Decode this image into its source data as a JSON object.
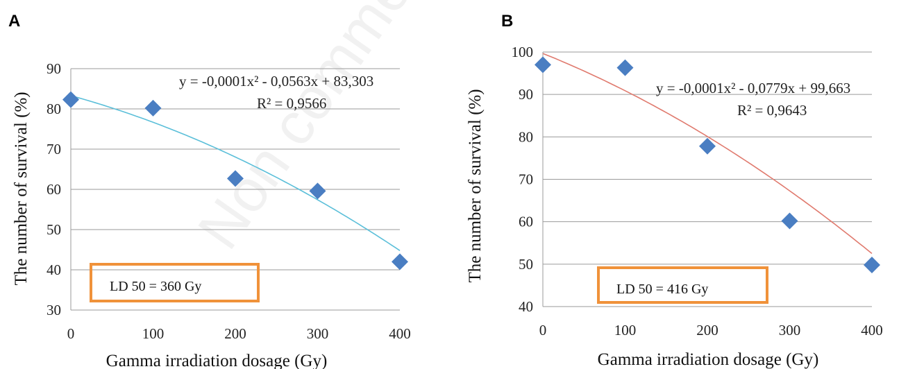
{
  "watermark": "Non commercial",
  "chart_data": [
    {
      "type": "scatter",
      "panel": "A",
      "title": "",
      "xlabel": "Gamma irradiation dosage (Gy)",
      "ylabel": "The number of survival (%)",
      "xlim": [
        0,
        400
      ],
      "ylim": [
        30,
        90
      ],
      "xticks": [
        0,
        100,
        200,
        300,
        400
      ],
      "yticks": [
        30,
        40,
        50,
        60,
        70,
        80,
        90
      ],
      "grid": true,
      "points": [
        {
          "x": 0,
          "y": 82.3
        },
        {
          "x": 100,
          "y": 80.2
        },
        {
          "x": 200,
          "y": 62.7
        },
        {
          "x": 300,
          "y": 59.6
        },
        {
          "x": 400,
          "y": 42.0
        }
      ],
      "trendline": {
        "type": "polynomial",
        "a": -0.0001,
        "b": -0.0563,
        "c": 83.303
      },
      "equation": "y = -0,0001x² - 0,0563x + 83,303",
      "r2": "R² = 0,9566",
      "annotation": "LD 50 = 360 Gy",
      "marker_color": "#4A7EC2",
      "trend_color": "#5BBFD9",
      "box_color": "#F0923A"
    },
    {
      "type": "scatter",
      "panel": "B",
      "title": "",
      "xlabel": "Gamma irradiation dosage  (Gy)",
      "ylabel": "The number of survival (%)",
      "xlim": [
        0,
        400
      ],
      "ylim": [
        40,
        100
      ],
      "xticks": [
        0,
        100,
        200,
        300,
        400
      ],
      "yticks": [
        40,
        50,
        60,
        70,
        80,
        90,
        100
      ],
      "grid": true,
      "points": [
        {
          "x": 0,
          "y": 97.0
        },
        {
          "x": 100,
          "y": 96.3
        },
        {
          "x": 200,
          "y": 77.8
        },
        {
          "x": 300,
          "y": 60.2
        },
        {
          "x": 400,
          "y": 49.8
        }
      ],
      "trendline": {
        "type": "polynomial",
        "a": -0.0001,
        "b": -0.0779,
        "c": 99.663
      },
      "equation": "y = -0,0001x² - 0,0779x + 99,663",
      "r2": "R² = 0,9643",
      "annotation": "LD 50 =  416 Gy",
      "marker_color": "#4A7EC2",
      "trend_color": "#E07A6E",
      "box_color": "#F0923A"
    }
  ]
}
